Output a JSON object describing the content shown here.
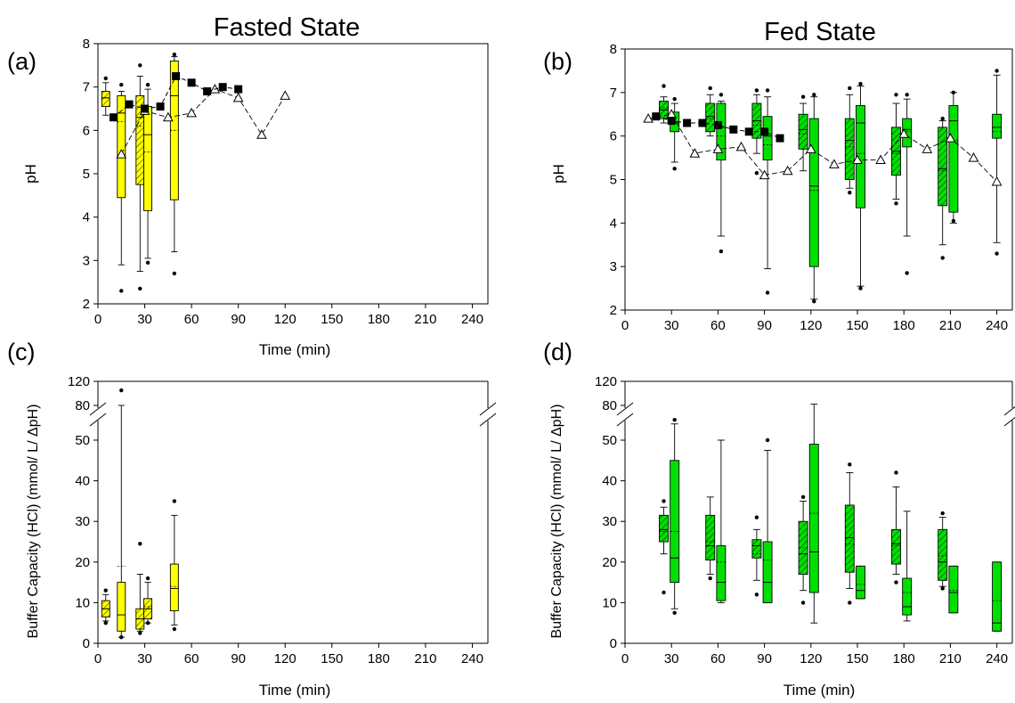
{
  "titles": {
    "fasted": "Fasted State",
    "fed": "Fed State"
  },
  "panel_labels": {
    "a": "(a)",
    "b": "(b)",
    "c": "(c)",
    "d": "(d)"
  },
  "colors": {
    "fasted_box": "#ffff00",
    "fed_box": "#00e000",
    "line": "#000000"
  },
  "chart_data": [
    {
      "id": "a",
      "type": "box",
      "xlabel": "Time (min)",
      "ylabel": "pH",
      "xlim": [
        0,
        250
      ],
      "ylim": [
        2,
        8
      ],
      "xticks": [
        0,
        30,
        60,
        90,
        120,
        150,
        180,
        210,
        240
      ],
      "yticks": [
        2,
        3,
        4,
        5,
        6,
        7,
        8
      ],
      "boxes": [
        {
          "x": 5,
          "hatched": true,
          "q1": 6.55,
          "med": 6.75,
          "q3": 6.9,
          "lo": 6.35,
          "hi": 7.1,
          "mean": 6.75,
          "out": [
            7.2
          ]
        },
        {
          "x": 15,
          "hatched": false,
          "q1": 4.45,
          "med": 6.4,
          "q3": 6.8,
          "lo": 2.9,
          "hi": 6.9,
          "mean": 6.2,
          "out": [
            2.3,
            7.05
          ]
        },
        {
          "x": 27,
          "hatched": true,
          "q1": 4.75,
          "med": 6.3,
          "q3": 6.8,
          "lo": 2.75,
          "hi": 7.25,
          "mean": 6.1,
          "out": [
            7.5,
            2.35
          ]
        },
        {
          "x": 32,
          "hatched": false,
          "q1": 4.15,
          "med": 5.9,
          "q3": 6.55,
          "lo": 3.05,
          "hi": 6.95,
          "mean": 5.5,
          "out": [
            2.95,
            7.05
          ]
        },
        {
          "x": 49,
          "hatched": false,
          "q1": 4.4,
          "med": 6.8,
          "q3": 7.6,
          "lo": 3.2,
          "hi": 7.7,
          "mean": 6.0,
          "out": [
            7.75,
            2.7
          ]
        }
      ],
      "square_series": {
        "x": [
          10,
          20,
          30,
          40,
          50,
          60,
          70,
          80,
          90
        ],
        "y": [
          6.3,
          6.6,
          6.5,
          6.55,
          7.25,
          7.1,
          6.9,
          7.0,
          6.95
        ]
      },
      "triangle_series": {
        "x": [
          15,
          30,
          45,
          60,
          75,
          90,
          105,
          120
        ],
        "y": [
          5.45,
          6.45,
          6.3,
          6.4,
          6.95,
          6.75,
          5.9,
          6.8
        ]
      }
    },
    {
      "id": "b",
      "type": "box",
      "xlabel": "",
      "ylabel": "pH",
      "xlim": [
        0,
        250
      ],
      "ylim": [
        2,
        8
      ],
      "xticks": [
        0,
        30,
        60,
        90,
        120,
        150,
        180,
        210,
        240
      ],
      "yticks": [
        2,
        3,
        4,
        5,
        6,
        7,
        8
      ],
      "boxes": [
        {
          "x": 25,
          "hatched": true,
          "q1": 6.4,
          "med": 6.6,
          "q3": 6.8,
          "lo": 6.3,
          "hi": 6.9,
          "mean": 6.65,
          "out": [
            7.15
          ]
        },
        {
          "x": 32,
          "hatched": false,
          "q1": 6.1,
          "med": 6.3,
          "q3": 6.55,
          "lo": 5.4,
          "hi": 6.75,
          "mean": 6.3,
          "out": [
            6.85,
            5.25
          ]
        },
        {
          "x": 55,
          "hatched": true,
          "q1": 6.1,
          "med": 6.45,
          "q3": 6.75,
          "lo": 6.0,
          "hi": 6.95,
          "mean": 6.4,
          "out": [
            7.1
          ]
        },
        {
          "x": 62,
          "hatched": false,
          "q1": 5.45,
          "med": 6.2,
          "q3": 6.75,
          "lo": 3.7,
          "hi": 6.8,
          "mean": 6.0,
          "out": [
            6.95,
            3.35
          ]
        },
        {
          "x": 85,
          "hatched": true,
          "q1": 5.95,
          "med": 6.35,
          "q3": 6.75,
          "lo": 5.6,
          "hi": 6.95,
          "mean": 6.25,
          "out": [
            7.05,
            5.15
          ]
        },
        {
          "x": 92,
          "hatched": false,
          "q1": 5.45,
          "med": 6.0,
          "q3": 6.45,
          "lo": 2.95,
          "hi": 6.9,
          "mean": 5.8,
          "out": [
            7.05,
            2.4
          ]
        },
        {
          "x": 115,
          "hatched": true,
          "q1": 5.7,
          "med": 6.15,
          "q3": 6.5,
          "lo": 5.2,
          "hi": 6.75,
          "mean": 6.05,
          "out": [
            6.9
          ]
        },
        {
          "x": 122,
          "hatched": false,
          "q1": 3.0,
          "med": 4.85,
          "q3": 6.4,
          "lo": 2.25,
          "hi": 6.9,
          "mean": 4.75,
          "out": [
            6.95,
            2.2
          ]
        },
        {
          "x": 145,
          "hatched": true,
          "q1": 5.0,
          "med": 5.9,
          "q3": 6.4,
          "lo": 4.8,
          "hi": 6.95,
          "mean": 5.75,
          "out": [
            7.1,
            4.7
          ]
        },
        {
          "x": 152,
          "hatched": false,
          "q1": 4.35,
          "med": 6.3,
          "q3": 6.7,
          "lo": 2.55,
          "hi": 7.15,
          "mean": 5.6,
          "out": [
            7.2,
            2.5
          ]
        },
        {
          "x": 175,
          "hatched": true,
          "q1": 5.1,
          "med": 5.65,
          "q3": 6.2,
          "lo": 4.55,
          "hi": 6.75,
          "mean": 5.6,
          "out": [
            6.95,
            4.45
          ]
        },
        {
          "x": 182,
          "hatched": false,
          "q1": 5.75,
          "med": 6.15,
          "q3": 6.4,
          "lo": 3.7,
          "hi": 6.85,
          "mean": 6.1,
          "out": [
            6.95,
            2.85
          ]
        },
        {
          "x": 205,
          "hatched": true,
          "q1": 4.4,
          "med": 5.25,
          "q3": 6.2,
          "lo": 3.5,
          "hi": 6.35,
          "mean": 5.2,
          "out": [
            6.4,
            3.2
          ]
        },
        {
          "x": 212,
          "hatched": false,
          "q1": 4.25,
          "med": 6.35,
          "q3": 6.7,
          "lo": 4.0,
          "hi": 7.0,
          "mean": 5.9,
          "out": [
            7.0,
            4.05
          ]
        },
        {
          "x": 240,
          "hatched": false,
          "q1": 5.95,
          "med": 6.2,
          "q3": 6.5,
          "lo": 3.55,
          "hi": 7.4,
          "mean": 6.1,
          "out": [
            7.5,
            3.3
          ]
        }
      ],
      "square_series": {
        "x": [
          20,
          30,
          40,
          50,
          60,
          70,
          80,
          90,
          100
        ],
        "y": [
          6.45,
          6.35,
          6.3,
          6.3,
          6.25,
          6.15,
          6.1,
          6.1,
          5.95
        ]
      },
      "triangle_series": {
        "x": [
          15,
          30,
          45,
          60,
          75,
          90,
          105,
          120,
          135,
          150,
          165,
          180,
          195,
          210,
          225,
          240
        ],
        "y": [
          6.4,
          6.5,
          5.6,
          5.7,
          5.75,
          5.1,
          5.2,
          5.7,
          5.35,
          5.45,
          5.45,
          6.05,
          5.7,
          5.95,
          5.5,
          4.95
        ]
      }
    },
    {
      "id": "c",
      "type": "box",
      "xlabel": "Time (min)",
      "ylabel": "Buffer Capacity (HCl) (mmol/ L/ ΔpH)",
      "xlim": [
        0,
        250
      ],
      "ylim": [
        0,
        55
      ],
      "break_ylim": [
        80,
        120
      ],
      "xticks": [
        0,
        30,
        60,
        90,
        120,
        150,
        180,
        210,
        240
      ],
      "yticks": [
        0,
        10,
        20,
        30,
        40,
        50
      ],
      "break_yticks": [
        80,
        120
      ],
      "boxes": [
        {
          "x": 5,
          "hatched": true,
          "q1": 6.5,
          "med": 8.5,
          "q3": 10.5,
          "lo": 5.5,
          "hi": 12.0,
          "mean": 8.5,
          "out": [
            13.0,
            5.0
          ]
        },
        {
          "x": 15,
          "hatched": false,
          "q1": 3.0,
          "med": 7.0,
          "q3": 15.0,
          "lo": 1.5,
          "hi": 80.0,
          "mean": 19.0,
          "out": [
            105.0,
            1.5
          ]
        },
        {
          "x": 27,
          "hatched": true,
          "q1": 3.5,
          "med": 6.0,
          "q3": 8.5,
          "lo": 3.0,
          "hi": 17.0,
          "mean": 6.0,
          "out": [
            24.5,
            2.5
          ]
        },
        {
          "x": 32,
          "hatched": true,
          "q1": 6.0,
          "med": 8.5,
          "q3": 11.0,
          "lo": 5.0,
          "hi": 15.0,
          "mean": 9.0,
          "out": [
            16.0,
            5.0
          ]
        },
        {
          "x": 49,
          "hatched": false,
          "q1": 8.0,
          "med": 13.5,
          "q3": 19.5,
          "lo": 4.5,
          "hi": 31.5,
          "mean": 14.0,
          "out": [
            35.0,
            3.5
          ]
        }
      ]
    },
    {
      "id": "d",
      "type": "box",
      "xlabel": "Time (min)",
      "ylabel": "Buffer Capacity (HCl) (mmol/ L/ ΔpH)",
      "xlim": [
        0,
        250
      ],
      "ylim": [
        0,
        55
      ],
      "break_ylim": [
        80,
        120
      ],
      "xticks": [
        0,
        30,
        60,
        90,
        120,
        150,
        180,
        210,
        240
      ],
      "yticks": [
        0,
        10,
        20,
        30,
        40,
        50
      ],
      "break_yticks": [
        80,
        120
      ],
      "boxes": [
        {
          "x": 25,
          "hatched": true,
          "q1": 25.0,
          "med": 28.0,
          "q3": 31.5,
          "lo": 22.0,
          "hi": 33.5,
          "mean": 27.5,
          "out": [
            35.0,
            12.5
          ]
        },
        {
          "x": 32,
          "hatched": false,
          "q1": 15.0,
          "med": 21.0,
          "q3": 45.0,
          "lo": 8.5,
          "hi": 54.0,
          "mean": 27.5,
          "out": [
            55.0,
            7.5
          ]
        },
        {
          "x": 55,
          "hatched": true,
          "q1": 20.5,
          "med": 24.0,
          "q3": 31.5,
          "lo": 17.0,
          "hi": 36.0,
          "mean": 25.0,
          "out": [
            16.0
          ]
        },
        {
          "x": 62,
          "hatched": false,
          "q1": 10.5,
          "med": 15.0,
          "q3": 24.0,
          "lo": 10.0,
          "hi": 50.0,
          "mean": 20.0,
          "out": []
        },
        {
          "x": 85,
          "hatched": true,
          "q1": 21.0,
          "med": 24.0,
          "q3": 25.5,
          "lo": 15.5,
          "hi": 28.0,
          "mean": 22.0,
          "out": [
            31.0,
            12.0
          ]
        },
        {
          "x": 92,
          "hatched": false,
          "q1": 10.0,
          "med": 15.0,
          "q3": 25.0,
          "lo": 10.0,
          "hi": 47.5,
          "mean": 20.5,
          "out": [
            50.0
          ]
        },
        {
          "x": 115,
          "hatched": true,
          "q1": 17.0,
          "med": 22.0,
          "q3": 30.0,
          "lo": 13.0,
          "hi": 35.0,
          "mean": 23.5,
          "out": [
            36.0,
            10.0
          ]
        },
        {
          "x": 122,
          "hatched": false,
          "q1": 12.5,
          "med": 22.5,
          "q3": 49.0,
          "lo": 5.0,
          "hi": 82.0,
          "mean": 32.0,
          "out": []
        },
        {
          "x": 145,
          "hatched": true,
          "q1": 17.5,
          "med": 26.0,
          "q3": 34.0,
          "lo": 13.5,
          "hi": 42.0,
          "mean": 24.5,
          "out": [
            44.0,
            10.0
          ]
        },
        {
          "x": 152,
          "hatched": false,
          "q1": 11.0,
          "med": 13.0,
          "q3": 19.0,
          "lo": 11.0,
          "hi": 19.0,
          "mean": 14.5,
          "out": []
        },
        {
          "x": 175,
          "hatched": true,
          "q1": 19.5,
          "med": 24.5,
          "q3": 28.0,
          "lo": 17.0,
          "hi": 38.5,
          "mean": 24.0,
          "out": [
            42.0,
            15.0
          ]
        },
        {
          "x": 182,
          "hatched": false,
          "q1": 7.0,
          "med": 9.0,
          "q3": 16.0,
          "lo": 5.5,
          "hi": 32.5,
          "mean": 12.5,
          "out": []
        },
        {
          "x": 205,
          "hatched": true,
          "q1": 15.5,
          "med": 20.0,
          "q3": 28.0,
          "lo": 14.0,
          "hi": 31.0,
          "mean": 21.5,
          "out": [
            32.0,
            13.5
          ]
        },
        {
          "x": 212,
          "hatched": false,
          "q1": 7.5,
          "med": 12.5,
          "q3": 19.0,
          "lo": 7.5,
          "hi": 19.0,
          "mean": 13.0,
          "out": []
        },
        {
          "x": 240,
          "hatched": false,
          "q1": 3.0,
          "med": 5.0,
          "q3": 20.0,
          "lo": 3.0,
          "hi": 20.0,
          "mean": 10.5,
          "out": []
        }
      ]
    }
  ]
}
